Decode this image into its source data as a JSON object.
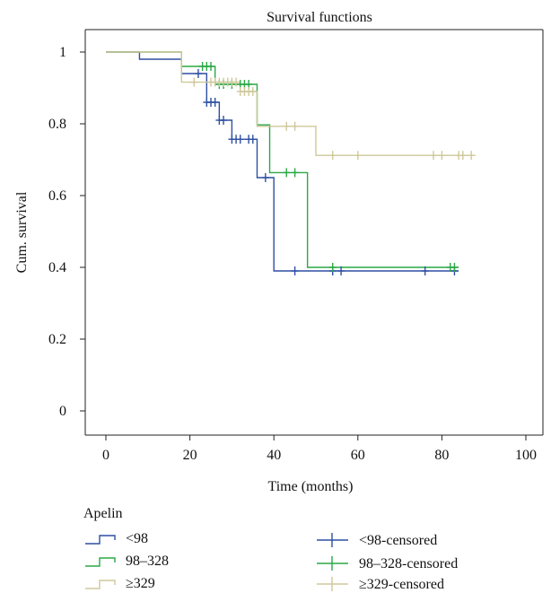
{
  "chart_data": {
    "type": "line",
    "subtype": "kaplan-meier step",
    "title": "Survival functions",
    "xlabel": "Time (months)",
    "ylabel": "Cum. survival",
    "xlim": [
      0,
      100
    ],
    "ylim": [
      0,
      1
    ],
    "xticks": [
      0,
      20,
      40,
      60,
      80,
      100
    ],
    "yticks": [
      0,
      0.2,
      0.4,
      0.6,
      0.8,
      1
    ],
    "ytick_labels": [
      "0",
      "0.2",
      "0.4",
      "0.6",
      "0.8",
      "1"
    ],
    "grid": false,
    "legend": {
      "title": "Apelin",
      "placement": "bottom"
    },
    "series": [
      {
        "name": "<98",
        "censored_name": "<98-censored",
        "color": "#2e4fa3",
        "steps": [
          [
            0,
            1
          ],
          [
            8,
            0.98
          ],
          [
            18,
            0.94
          ],
          [
            24,
            0.86
          ],
          [
            27,
            0.81
          ],
          [
            30,
            0.757
          ],
          [
            36,
            0.65
          ],
          [
            40,
            0.39
          ],
          [
            84,
            0.39
          ]
        ],
        "censored": [
          [
            22,
            0.94
          ],
          [
            24,
            0.86
          ],
          [
            25,
            0.86
          ],
          [
            26,
            0.86
          ],
          [
            27,
            0.81
          ],
          [
            28,
            0.81
          ],
          [
            30,
            0.757
          ],
          [
            31,
            0.757
          ],
          [
            32,
            0.757
          ],
          [
            34,
            0.757
          ],
          [
            35,
            0.757
          ],
          [
            38,
            0.65
          ],
          [
            45,
            0.39
          ],
          [
            54,
            0.39
          ],
          [
            56,
            0.39
          ],
          [
            76,
            0.39
          ],
          [
            83,
            0.39
          ]
        ]
      },
      {
        "name": "98–328",
        "censored_name": "98–328-censored",
        "color": "#2aa845",
        "steps": [
          [
            0,
            1
          ],
          [
            18,
            0.96
          ],
          [
            26,
            0.91
          ],
          [
            36,
            0.797
          ],
          [
            39,
            0.664
          ],
          [
            48,
            0.4
          ],
          [
            84,
            0.4
          ]
        ],
        "censored": [
          [
            23,
            0.96
          ],
          [
            24,
            0.96
          ],
          [
            25,
            0.96
          ],
          [
            27,
            0.91
          ],
          [
            28,
            0.91
          ],
          [
            30,
            0.91
          ],
          [
            32,
            0.91
          ],
          [
            33,
            0.91
          ],
          [
            34,
            0.91
          ],
          [
            43,
            0.664
          ],
          [
            45,
            0.664
          ],
          [
            54,
            0.4
          ],
          [
            82,
            0.4
          ],
          [
            83,
            0.4
          ]
        ]
      },
      {
        "name": "≥329",
        "censored_name": "≥329-censored",
        "color": "#cfc89a",
        "steps": [
          [
            0,
            1
          ],
          [
            18,
            0.916
          ],
          [
            32,
            0.89
          ],
          [
            36,
            0.793
          ],
          [
            50,
            0.712
          ],
          [
            88,
            0.712
          ]
        ],
        "censored": [
          [
            21,
            0.916
          ],
          [
            25,
            0.916
          ],
          [
            26,
            0.916
          ],
          [
            27,
            0.916
          ],
          [
            28,
            0.916
          ],
          [
            29,
            0.916
          ],
          [
            30,
            0.916
          ],
          [
            31,
            0.916
          ],
          [
            32,
            0.89
          ],
          [
            33,
            0.89
          ],
          [
            34,
            0.89
          ],
          [
            35,
            0.89
          ],
          [
            43,
            0.793
          ],
          [
            45,
            0.793
          ],
          [
            54,
            0.712
          ],
          [
            60,
            0.712
          ],
          [
            78,
            0.712
          ],
          [
            80,
            0.712
          ],
          [
            84,
            0.712
          ],
          [
            85,
            0.712
          ],
          [
            87,
            0.712
          ]
        ]
      }
    ]
  }
}
